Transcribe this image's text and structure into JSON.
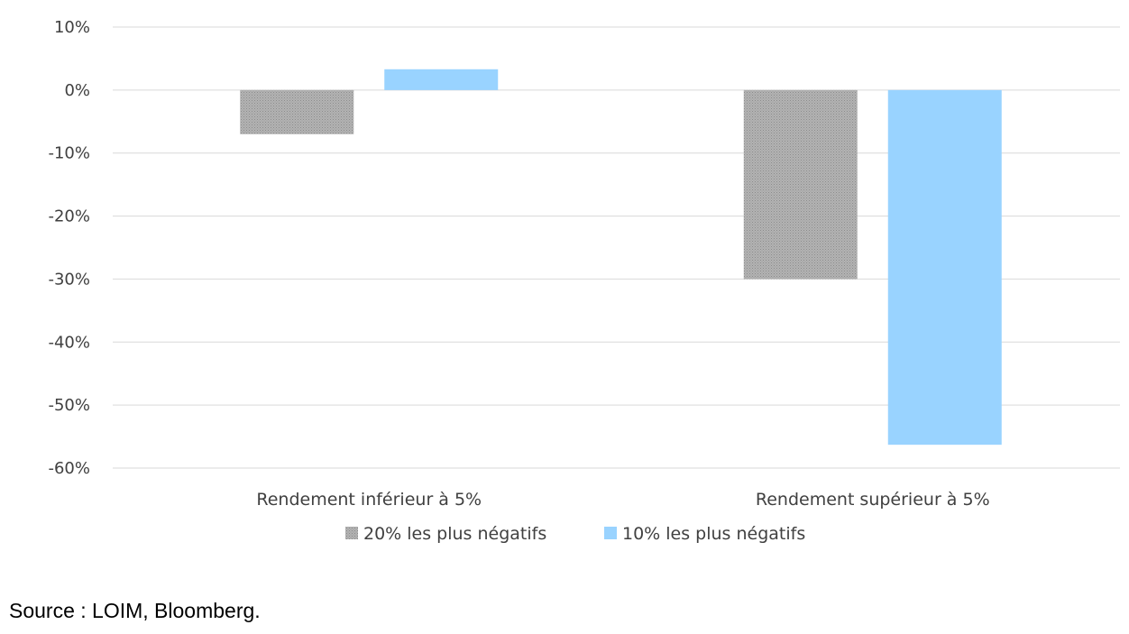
{
  "chart_data": {
    "type": "bar",
    "title": "",
    "xlabel": "",
    "ylabel": "",
    "categories": [
      "Rendement inférieur à 5%",
      "Rendement supérieur à 5%"
    ],
    "series": [
      {
        "name": "20% les plus négatifs",
        "values": [
          -7,
          -30
        ],
        "color": "#a6a6a6",
        "pattern": "dotted"
      },
      {
        "name": "10% les plus négatifs",
        "values": [
          3.3,
          -56.3
        ],
        "color": "#99d3ff",
        "pattern": "solid"
      }
    ],
    "ylim": [
      -60,
      10
    ],
    "yticks": [
      10,
      0,
      -10,
      -20,
      -30,
      -40,
      -50,
      -60
    ],
    "ytick_labels": [
      "10%",
      "0%",
      "-10%",
      "-20%",
      "-30%",
      "-40%",
      "-50%",
      "-60%"
    ],
    "grid": true,
    "legend": "bottom-center"
  },
  "source_text": "Source : LOIM, Bloomberg."
}
